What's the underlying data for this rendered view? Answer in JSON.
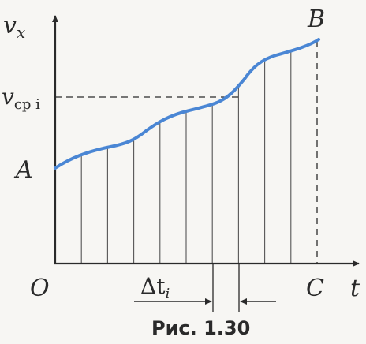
{
  "labels": {
    "y_axis": "v",
    "y_axis_sub": "x",
    "x_axis": "t",
    "origin": "O",
    "point_a": "A",
    "point_b": "B",
    "point_c": "C",
    "v_avg": "v",
    "v_avg_sub": "cp i",
    "delta_t": "Δt",
    "delta_t_sub": "i"
  },
  "caption": "Рис. 1.30",
  "colors": {
    "curve": "#4a86d4",
    "axes": "#2a2a2a",
    "strips": "#555555",
    "background": "#f7f6f3"
  },
  "strip_count": 10,
  "highlighted_strip": 7
}
